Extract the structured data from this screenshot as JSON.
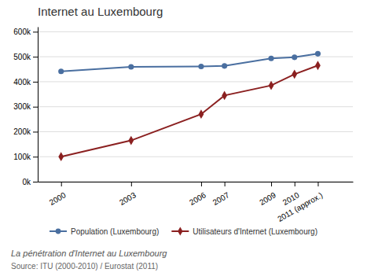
{
  "chart_data": {
    "type": "line",
    "title": "Internet au Luxembourg",
    "subtitle": "La pénétration d'Internet au Luxembourg",
    "annotations": [
      "Source: ITU (2000-2010) / Eurostat (2011)"
    ],
    "x": [
      2000,
      2003,
      2006,
      2007,
      2009,
      2010,
      2011
    ],
    "series": [
      {
        "name": "Population (Luxembourg)",
        "color": "#4a6fa0",
        "marker": "circle",
        "values": [
          441300,
          459500,
          461200,
          463100,
          493500,
          497800,
          512000
        ]
      },
      {
        "name": "Utilisateurs d'Internet (Luxembourg)",
        "color": "#8b2020",
        "marker": "diamond",
        "values": [
          100000,
          165000,
          270000,
          345000,
          385000,
          430000,
          465000
        ]
      }
    ],
    "xlim": [
      1999,
      2012.5
    ],
    "xticks": [
      2000,
      2003,
      2006,
      2007,
      2009,
      2010,
      {
        "value": 2011,
        "label": "2011 (approx.)"
      }
    ],
    "ylim": [
      0,
      620000
    ],
    "yticks": [
      {
        "value": 0,
        "label": "0k"
      },
      {
        "value": 100000,
        "label": "100k"
      },
      {
        "value": 200000,
        "label": "200k"
      },
      {
        "value": 300000,
        "label": "300k"
      },
      {
        "value": 400000,
        "label": "400k"
      },
      {
        "value": 500000,
        "label": "500k"
      },
      {
        "value": 600000,
        "label": "600k"
      }
    ],
    "grid": true,
    "legend": "bottom"
  }
}
